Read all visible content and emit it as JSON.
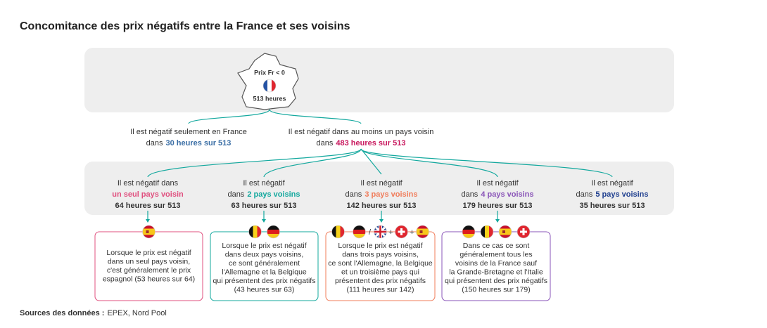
{
  "title": "Concomitance des prix négatifs entre la France et ses voisins",
  "france": {
    "label": "Prix Fr < 0",
    "hours": "513 heures"
  },
  "branches": [
    {
      "line1": "Il est négatif seulement en France",
      "prefix": "dans",
      "highlight": "30 heures sur 513",
      "color": "#3a6ea5"
    },
    {
      "line1": "Il est négatif dans au moins un pays voisin",
      "prefix": "dans",
      "highlight": "483 heures sur 513",
      "color": "#c8175d"
    }
  ],
  "groups": [
    {
      "line1": "Il est négatif dans",
      "highlight": "un seul pays voisin",
      "hours": "64 heures sur 513",
      "color": "#e0507f"
    },
    {
      "line1": "Il est négatif",
      "prefix": "dans",
      "highlight": "2 pays voisins",
      "hours": "63 heures sur 513",
      "color": "#13a89e"
    },
    {
      "line1": "Il est négatif",
      "prefix": "dans",
      "highlight": "3 pays voisins",
      "hours": "142 heures sur 513",
      "color": "#f07c5a"
    },
    {
      "line1": "Il est négatif",
      "prefix": "dans",
      "highlight": "4 pays voisins",
      "hours": "179 heures sur 513",
      "color": "#8a55b8"
    },
    {
      "line1": "Il est négatif",
      "prefix": "dans",
      "highlight": "5 pays voisins",
      "hours": "35 heures sur 513",
      "color": "#1f3f8f"
    }
  ],
  "details": [
    {
      "lines": [
        "Lorsque le prix est négatif",
        "dans un seul pays voisin,",
        "c'est généralement le prix",
        "espagnol (53 heures sur 64)"
      ]
    },
    {
      "lines": [
        "Lorsque le prix est négatif",
        "dans deux pays voisins,",
        "ce sont généralement",
        "l'Allemagne et la Belgique",
        "qui présentent des prix négatifs",
        "(43 heures sur 63)"
      ]
    },
    {
      "lines": [
        "Lorsque le prix est négatif",
        "dans trois pays voisins,",
        "ce sont l'Allemagne, la Belgique",
        "et un troisième pays qui",
        "présentent des prix négatifs",
        "(111 heures sur 142)"
      ],
      "separators": [
        "/",
        "+",
        "+"
      ]
    },
    {
      "lines": [
        "Dans ce cas ce sont",
        "généralement tous les",
        "voisins de la France sauf",
        "la Grande-Bretagne et l'Italie",
        "qui présentent des prix négatifs",
        "(150 heures sur 179)"
      ]
    }
  ],
  "source": {
    "label": "Sources des données :",
    "text": "EPEX, Nord Pool"
  }
}
